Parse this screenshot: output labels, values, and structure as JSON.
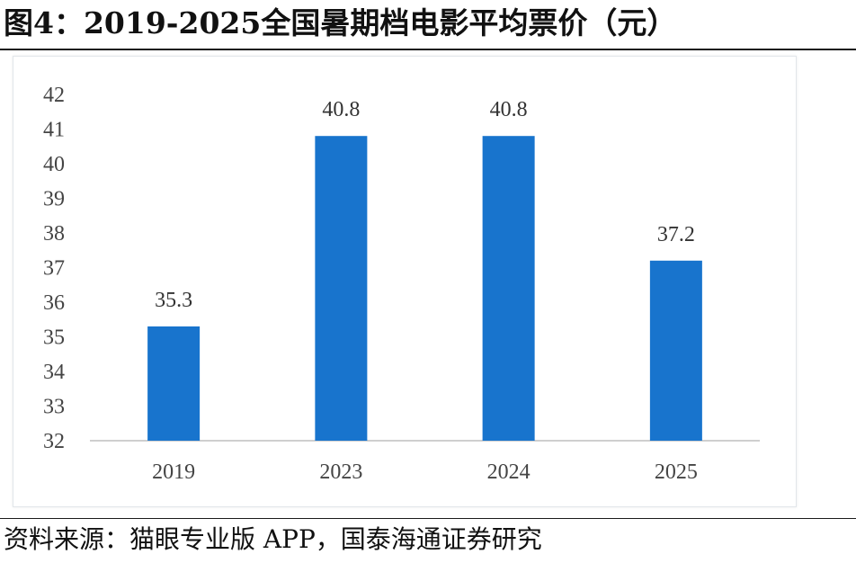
{
  "title": "图4：2019-2025全国暑期档电影平均票价（元）",
  "source": "资料来源：猫眼专业版 APP，国泰海通证券研究",
  "colors": {
    "bar": "#1874CD",
    "axis": "#bfbfbf"
  },
  "chart_data": {
    "type": "bar",
    "categories": [
      "2019",
      "2023",
      "2024",
      "2025"
    ],
    "values": [
      35.3,
      40.8,
      40.8,
      37.2
    ],
    "value_labels": [
      "35.3",
      "40.8",
      "40.8",
      "37.2"
    ],
    "yticks": [
      "32",
      "33",
      "34",
      "35",
      "36",
      "37",
      "38",
      "39",
      "40",
      "41",
      "42"
    ],
    "ylim": [
      32,
      42
    ],
    "grid": false,
    "legend": "none"
  }
}
